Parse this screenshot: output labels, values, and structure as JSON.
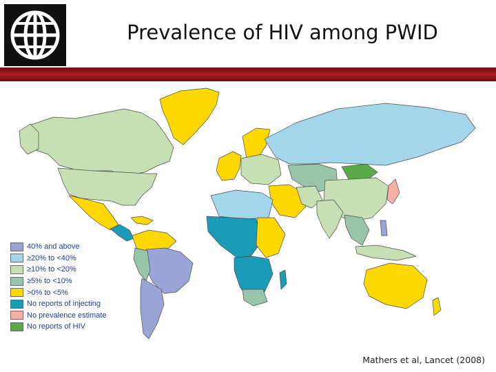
{
  "header": {
    "title": "Prevalence of HIV among PWID",
    "accent_color": "#a81e24"
  },
  "logo": {
    "icon": "globe-icon"
  },
  "legend": {
    "items": [
      {
        "label": "40% and above",
        "color": "#9aa4d6"
      },
      {
        "label": "≥20% to <40%",
        "color": "#a3d6ea"
      },
      {
        "label": "≥10% to <20%",
        "color": "#c6e0b4"
      },
      {
        "label": "≥5% to <10%",
        "color": "#98c4aa"
      },
      {
        "label": ">0% to <5%",
        "color": "#ffd800"
      },
      {
        "label": "No reports of injecting",
        "color": "#1a9cb8"
      },
      {
        "label": "No prevalence estimate",
        "color": "#f7b0a6"
      },
      {
        "label": "No reports of HIV",
        "color": "#5aaa4a"
      }
    ]
  },
  "citation": "Mathers et al, Lancet (2008)"
}
